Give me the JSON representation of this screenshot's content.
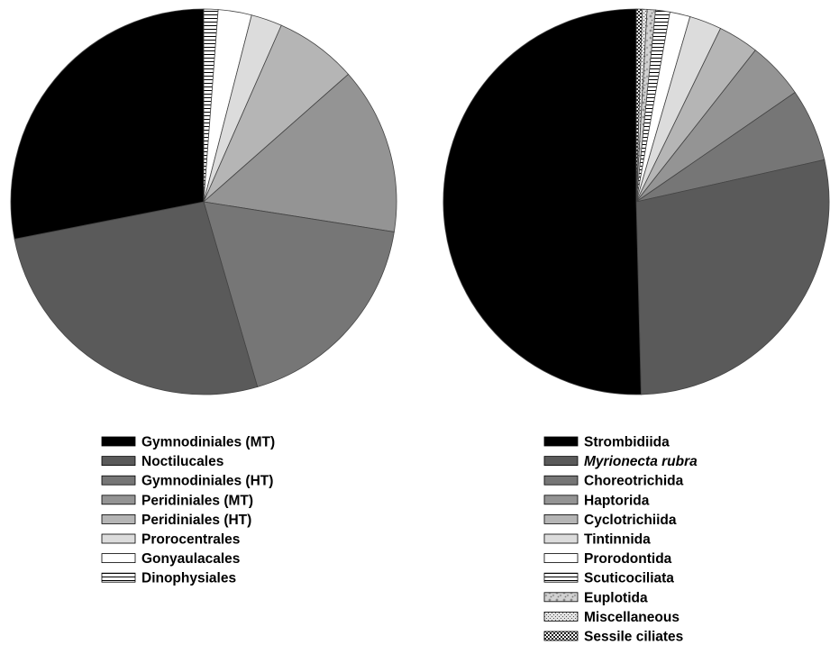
{
  "chart_data": [
    {
      "type": "pie",
      "title": "",
      "units": "percent",
      "start": "12 o'clock",
      "direction": "clockwise",
      "slices": [
        {
          "label": "Dinophysiales",
          "value": 1.2,
          "fill": "hlines"
        },
        {
          "label": "Gonyaulacales",
          "value": 2.8,
          "fill": "#ffffff"
        },
        {
          "label": "Prorocentrales",
          "value": 2.6,
          "fill": "#dcdcdc"
        },
        {
          "label": "Peridiniales (HT)",
          "value": 6.9,
          "fill": "#b5b5b5"
        },
        {
          "label": "Peridiniales (MT)",
          "value": 14.0,
          "fill": "#949494"
        },
        {
          "label": "Gymnodiniales (HT)",
          "value": 18.0,
          "fill": "#767676"
        },
        {
          "label": "Noctilucales",
          "value": 26.4,
          "fill": "#5a5a5a"
        },
        {
          "label": "Gymnodiniales (MT)",
          "value": 28.1,
          "fill": "#000000"
        }
      ],
      "legend": {
        "placement": "below",
        "entries": [
          {
            "label": "Gymnodiniales (MT)",
            "fill": "#000000"
          },
          {
            "label": "Noctilucales",
            "fill": "#5a5a5a"
          },
          {
            "label": "Gymnodiniales (HT)",
            "fill": "#767676"
          },
          {
            "label": "Peridiniales (MT)",
            "fill": "#949494"
          },
          {
            "label": "Peridiniales (HT)",
            "fill": "#b5b5b5"
          },
          {
            "label": "Prorocentrales",
            "fill": "#dcdcdc"
          },
          {
            "label": "Gonyaulacales",
            "fill": "#ffffff"
          },
          {
            "label": "Dinophysiales",
            "fill": "hlines"
          }
        ]
      }
    },
    {
      "type": "pie",
      "title": "",
      "units": "percent",
      "start": "12 o'clock",
      "direction": "clockwise",
      "slices": [
        {
          "label": "Sessile ciliates",
          "value": 0.5,
          "fill": "checker"
        },
        {
          "label": "Miscellaneous",
          "value": 0.4,
          "fill": "speckle"
        },
        {
          "label": "Euplotida",
          "value": 0.7,
          "fill": "mottle"
        },
        {
          "label": "Scuticociliata",
          "value": 1.2,
          "fill": "hlines"
        },
        {
          "label": "Prorodontida",
          "value": 1.7,
          "fill": "#ffffff"
        },
        {
          "label": "Tintinnida",
          "value": 2.7,
          "fill": "#dcdcdc"
        },
        {
          "label": "Cyclotrichiida",
          "value": 3.4,
          "fill": "#b5b5b5"
        },
        {
          "label": "Haptorida",
          "value": 4.8,
          "fill": "#949494"
        },
        {
          "label": "Choreotrichida",
          "value": 6.1,
          "fill": "#767676"
        },
        {
          "label": "Myrionecta rubra",
          "value": 28.1,
          "fill": "#5a5a5a"
        },
        {
          "label": "Strombidiida",
          "value": 50.4,
          "fill": "#000000"
        }
      ],
      "legend": {
        "placement": "below",
        "entries": [
          {
            "label": "Strombidiida",
            "fill": "#000000"
          },
          {
            "label": "Myrionecta rubra",
            "fill": "#5a5a5a",
            "italic": true
          },
          {
            "label": "Choreotrichida",
            "fill": "#767676"
          },
          {
            "label": "Haptorida",
            "fill": "#949494"
          },
          {
            "label": "Cyclotrichiida",
            "fill": "#b5b5b5"
          },
          {
            "label": "Tintinnida",
            "fill": "#dcdcdc"
          },
          {
            "label": "Prorodontida",
            "fill": "#ffffff"
          },
          {
            "label": "Scuticociliata",
            "fill": "hlines"
          },
          {
            "label": "Euplotida",
            "fill": "mottle"
          },
          {
            "label": "Miscellaneous",
            "fill": "speckle"
          },
          {
            "label": "Sessile ciliates",
            "fill": "checker"
          }
        ]
      }
    }
  ]
}
